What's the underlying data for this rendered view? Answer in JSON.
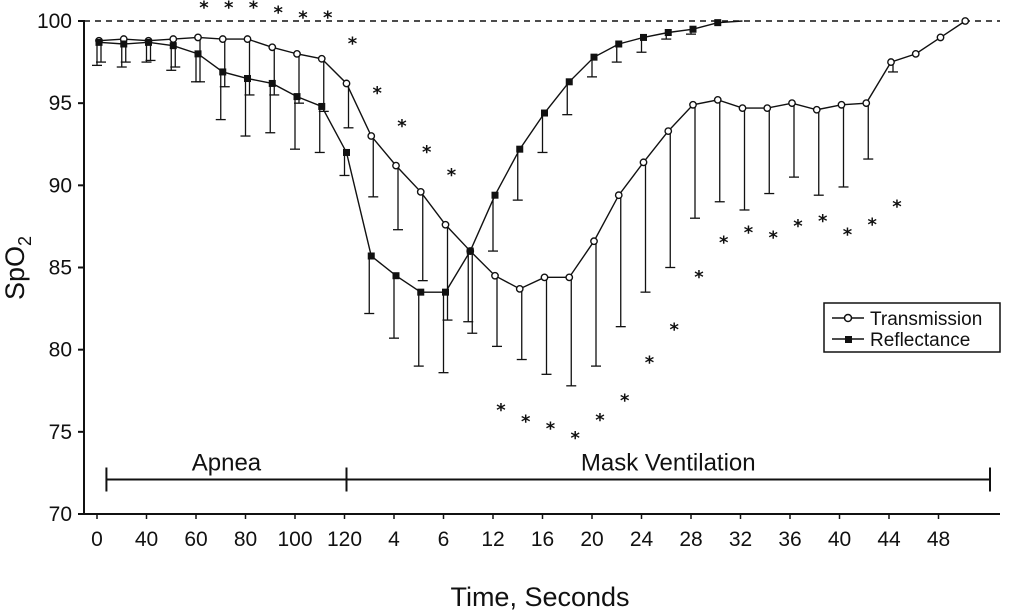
{
  "chart_data": {
    "type": "line",
    "ylabel": "SpO2",
    "ylabel_main": "SpO",
    "ylabel_sub": "2",
    "xlabel": "Time, Seconds",
    "ylim": [
      70,
      100
    ],
    "yticks": [
      70,
      75,
      80,
      85,
      90,
      95,
      100
    ],
    "x": [
      0,
      1,
      2,
      3,
      4,
      5,
      6,
      7,
      8,
      9,
      10,
      11,
      12,
      13,
      14,
      15,
      16,
      17,
      18,
      19,
      20,
      21,
      22,
      23,
      24,
      25,
      26,
      27,
      28,
      29,
      30,
      31,
      32,
      33,
      34,
      35,
      36
    ],
    "xtick_labels": [
      "0",
      "40",
      "60",
      "80",
      "100",
      "120",
      "4",
      "6",
      "12",
      "16",
      "20",
      "24",
      "28",
      "32",
      "36",
      "40",
      "44",
      "48"
    ],
    "series": [
      {
        "name": "Transmission",
        "marker": "open-circle",
        "values": [
          98.8,
          98.9,
          98.8,
          98.9,
          99.0,
          98.9,
          98.9,
          98.4,
          98.0,
          97.7,
          96.2,
          93.0,
          91.2,
          89.6,
          87.6,
          86.0,
          84.5,
          83.7,
          84.4,
          84.4,
          86.6,
          89.4,
          91.4,
          93.3,
          94.9,
          95.2,
          94.7,
          94.7,
          95.0,
          94.6,
          94.9,
          95.0,
          97.5,
          98.0,
          99.0,
          100.0,
          null
        ],
        "error_low": [
          97.5,
          97.5,
          97.6,
          97.2,
          96.3,
          96.0,
          95.5,
          95.5,
          95.0,
          94.5,
          93.5,
          89.3,
          87.3,
          84.2,
          81.8,
          81.0,
          80.2,
          79.4,
          78.5,
          77.8,
          79.0,
          81.4,
          83.5,
          85.0,
          88.0,
          89.0,
          88.5,
          89.5,
          90.5,
          89.4,
          89.9,
          91.6,
          96.9,
          null,
          null,
          null,
          null
        ]
      },
      {
        "name": "Reflectance",
        "marker": "filled-square",
        "values": [
          98.7,
          98.6,
          98.7,
          98.5,
          98.0,
          96.9,
          96.5,
          96.2,
          95.4,
          94.8,
          92.0,
          85.7,
          84.5,
          83.5,
          83.5,
          86.0,
          89.4,
          92.2,
          94.4,
          96.3,
          97.8,
          98.6,
          99.0,
          99.3,
          99.5,
          99.9,
          100.0,
          100.0,
          100.0,
          100.0,
          100.0,
          100.0,
          100.0,
          100.0,
          100.0,
          100.0,
          100.0
        ],
        "error_low": [
          97.3,
          97.2,
          97.5,
          97.0,
          96.3,
          94.0,
          93.0,
          93.2,
          92.2,
          92.0,
          90.6,
          82.2,
          80.7,
          79.0,
          78.6,
          81.7,
          86.0,
          89.1,
          92.0,
          94.3,
          96.6,
          97.5,
          98.1,
          98.9,
          99.2,
          null,
          null,
          null,
          null,
          null,
          null,
          null,
          null,
          null,
          null,
          null,
          null
        ]
      }
    ],
    "significance_markers": {
      "symbol": "*",
      "points": [
        [
          4,
          101.0
        ],
        [
          5,
          101.0
        ],
        [
          6,
          101.0
        ],
        [
          7,
          100.7
        ],
        [
          8,
          100.4
        ],
        [
          9,
          100.4
        ],
        [
          10,
          98.8
        ],
        [
          11,
          95.8
        ],
        [
          12,
          93.8
        ],
        [
          13,
          92.2
        ],
        [
          14,
          90.8
        ],
        [
          16,
          76.5
        ],
        [
          17,
          75.8
        ],
        [
          18,
          75.4
        ],
        [
          19,
          74.8
        ],
        [
          20,
          75.9
        ],
        [
          21,
          77.1
        ],
        [
          22,
          79.4
        ],
        [
          23,
          81.4
        ],
        [
          24,
          84.6
        ],
        [
          25,
          86.7
        ],
        [
          26,
          87.3
        ],
        [
          27,
          87.0
        ],
        [
          28,
          87.7
        ],
        [
          29,
          88.0
        ],
        [
          30,
          87.2
        ],
        [
          31,
          87.8
        ],
        [
          32,
          88.9
        ]
      ]
    },
    "phases": [
      {
        "label": "Apnea",
        "x_start": 0.3,
        "x_end": 10.0
      },
      {
        "label": "Mask Ventilation",
        "x_start": 10.0,
        "x_end": 36.0
      }
    ],
    "legend": {
      "position": "right-middle",
      "entries": [
        {
          "label": "Transmission",
          "marker": "open-circle"
        },
        {
          "label": "Reflectance",
          "marker": "filled-square"
        }
      ]
    },
    "grid": false
  }
}
